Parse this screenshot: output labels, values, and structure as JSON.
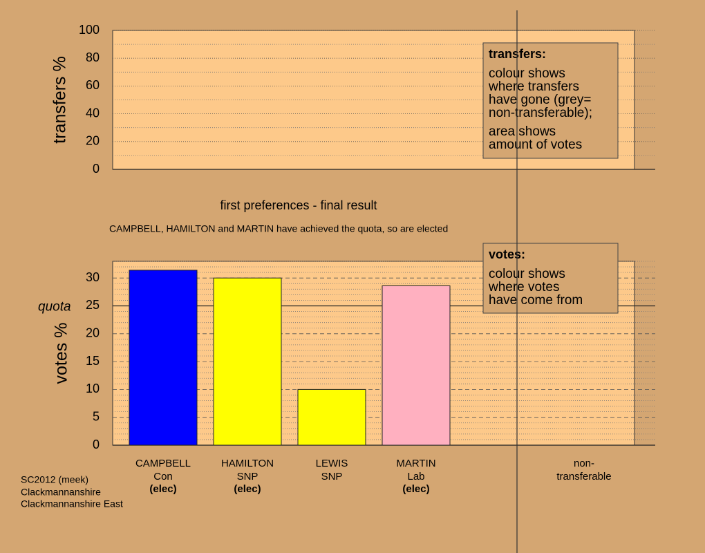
{
  "chart_data": [
    {
      "type": "empty",
      "ylabel": "transfers %",
      "ylim": [
        0,
        100
      ],
      "yticks": [
        0,
        20,
        40,
        60,
        80,
        100
      ],
      "minor_yticks": [
        10,
        30,
        50,
        70,
        90
      ],
      "legend": {
        "title": "transfers:",
        "lines": [
          "colour shows",
          "where transfers",
          "have gone (grey=",
          "non-transferable);"
        ],
        "lines2": [
          "area shows",
          "amount of votes"
        ]
      },
      "title": "first preferences - final result",
      "subtitle": "CAMPBELL, HAMILTON and MARTIN have achieved the quota, so are elected"
    },
    {
      "type": "bar",
      "ylabel": "votes %",
      "ylim": [
        0,
        33
      ],
      "yticks": [
        0,
        5,
        10,
        15,
        20,
        25,
        30
      ],
      "minor_yticks": [
        1,
        2,
        3,
        4,
        6,
        7,
        8,
        9,
        11,
        12,
        13,
        14,
        16,
        17,
        18,
        19,
        21,
        22,
        23,
        24,
        26,
        27,
        28,
        29,
        31,
        32,
        33
      ],
      "quota": 25,
      "quota_label": "quota",
      "categories": [
        "CAMPBELL",
        "HAMILTON",
        "LEWIS",
        "MARTIN",
        "non-\ntransferable"
      ],
      "parties": [
        "Con",
        "SNP",
        "SNP",
        "Lab",
        null
      ],
      "status": [
        "(elec)",
        "(elec)",
        null,
        "(elec)",
        null
      ],
      "values": [
        31.4,
        30,
        10,
        28.6,
        null
      ],
      "colors": [
        "#0000ff",
        "#ffff00",
        "#ffff00",
        "#ffb0c0",
        null
      ],
      "legend": {
        "title": "votes:",
        "lines": [
          "colour shows",
          "where votes",
          "have come from"
        ]
      }
    }
  ],
  "footer": [
    "SC2012 (meek)",
    "Clackmannanshire",
    "Clackmannanshire East"
  ]
}
